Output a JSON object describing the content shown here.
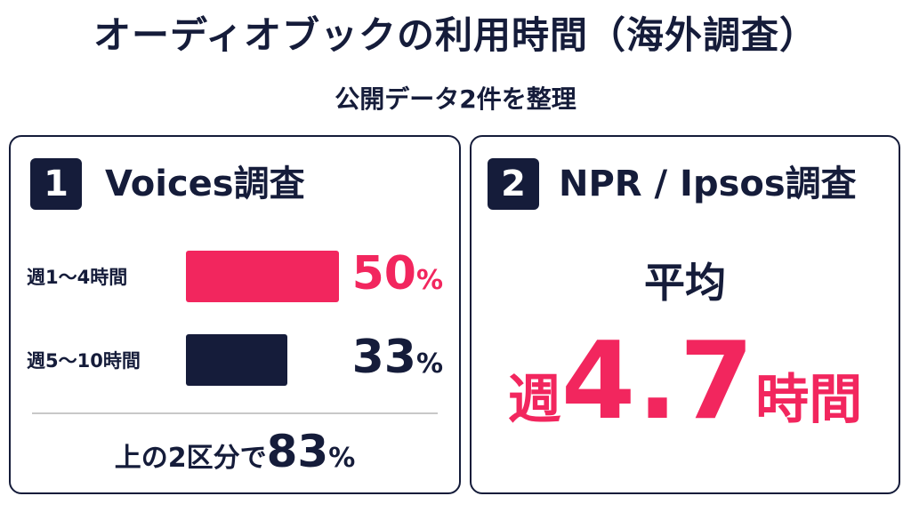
{
  "header": {
    "title": "オーディオブックの利用時間（海外調査）",
    "subtitle": "公開データ2件を整理"
  },
  "colors": {
    "navy": "#151c3a",
    "accent": "#f2265e",
    "divider": "#c8c8c8"
  },
  "survey1": {
    "badge": "1",
    "title": "Voices調査",
    "rows": [
      {
        "label": "週1〜4時間",
        "value": 50,
        "value_text": "50",
        "unit": "%",
        "color": "#f2265e"
      },
      {
        "label": "週5〜10時間",
        "value": 33,
        "value_text": "33",
        "unit": "%",
        "color": "#151c3a"
      }
    ],
    "summary": {
      "text": "上の2区分で",
      "value": "83",
      "unit": "%"
    }
  },
  "survey2": {
    "badge": "2",
    "title": "NPR / Ipsos調査",
    "average_label": "平均",
    "average_prefix": "週",
    "average_value": "4.7",
    "average_suffix": "時間"
  }
}
